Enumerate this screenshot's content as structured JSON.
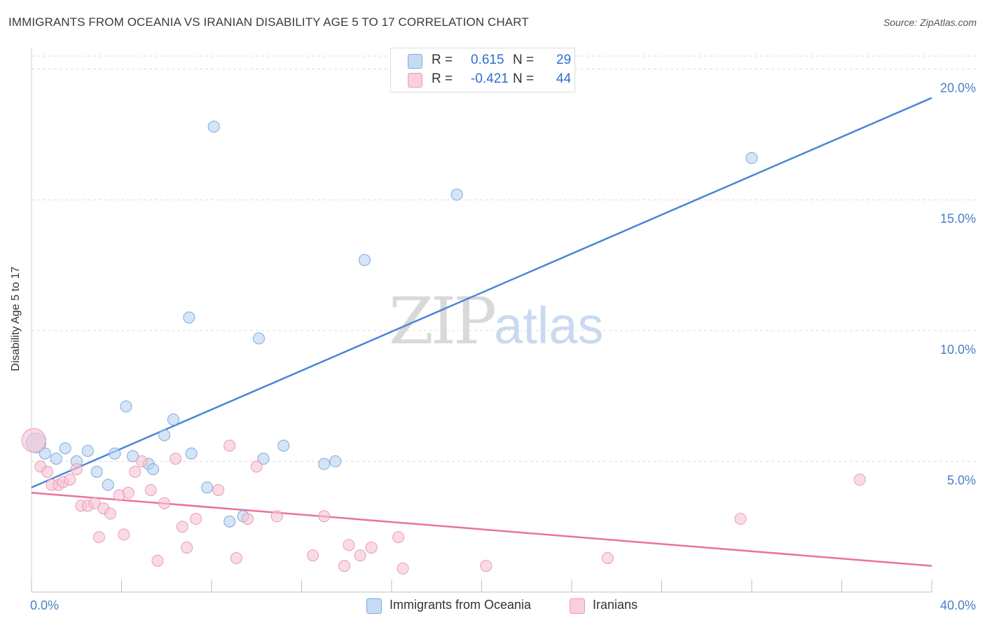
{
  "title": "IMMIGRANTS FROM OCEANIA VS IRANIAN DISABILITY AGE 5 TO 17 CORRELATION CHART",
  "source": "Source: ZipAtlas.com",
  "watermark": {
    "zip": "ZIP",
    "atlas": "atlas"
  },
  "legend": {
    "rows": [
      {
        "r_label": "R =",
        "r_value": "0.615",
        "n_label": "N =",
        "n_value": "29",
        "color": "#a8c8f0"
      },
      {
        "r_label": "R =",
        "r_value": "-0.421",
        "n_label": "N =",
        "n_value": "44",
        "color": "#f5b8cc"
      }
    ]
  },
  "bottom_legend": [
    {
      "label": "Immigrants from Oceania",
      "color": "#a8c8f0"
    },
    {
      "label": "Iranians",
      "color": "#f5b8cc"
    }
  ],
  "colors": {
    "blue": "#4a86d4",
    "blue_fill": "#b9d3f2",
    "pink": "#e8739b",
    "pink_fill": "#f7c3d3",
    "tick_label": "#4a7fc7"
  },
  "chart_data": {
    "type": "scatter",
    "title": "IMMIGRANTS FROM OCEANIA VS IRANIAN DISABILITY AGE 5 TO 17 CORRELATION CHART",
    "xlabel": "",
    "ylabel": "Disability Age 5 to 17",
    "xlim": [
      0,
      40
    ],
    "ylim": [
      0,
      20.5
    ],
    "x_tick_labels": [
      "0.0%",
      "40.0%"
    ],
    "y_ticks": [
      5,
      10,
      15,
      20
    ],
    "y_tick_labels": [
      "5.0%",
      "10.0%",
      "15.0%",
      "20.0%"
    ],
    "grid": true,
    "legend_position": "top-center",
    "series": [
      {
        "name": "Immigrants from Oceania",
        "color": "#4a86d4",
        "trend": {
          "x": [
            0,
            40
          ],
          "y": [
            4.0,
            18.9
          ]
        },
        "points": [
          [
            0.2,
            5.7
          ],
          [
            0.6,
            5.3
          ],
          [
            1.1,
            5.1
          ],
          [
            1.5,
            5.5
          ],
          [
            2.0,
            5.0
          ],
          [
            2.5,
            5.4
          ],
          [
            2.9,
            4.6
          ],
          [
            3.4,
            4.1
          ],
          [
            3.7,
            5.3
          ],
          [
            4.2,
            7.1
          ],
          [
            4.5,
            5.2
          ],
          [
            5.2,
            4.9
          ],
          [
            5.4,
            4.7
          ],
          [
            5.9,
            6.0
          ],
          [
            6.3,
            6.6
          ],
          [
            7.0,
            10.5
          ],
          [
            7.1,
            5.3
          ],
          [
            7.8,
            4.0
          ],
          [
            8.1,
            17.8
          ],
          [
            8.8,
            2.7
          ],
          [
            9.4,
            2.9
          ],
          [
            10.1,
            9.7
          ],
          [
            10.3,
            5.1
          ],
          [
            11.2,
            5.6
          ],
          [
            13.0,
            4.9
          ],
          [
            13.5,
            5.0
          ],
          [
            14.8,
            12.7
          ],
          [
            18.9,
            15.2
          ],
          [
            32.0,
            16.6
          ]
        ]
      },
      {
        "name": "Iranians",
        "color": "#e8739b",
        "trend": {
          "x": [
            0,
            40
          ],
          "y": [
            3.8,
            1.0
          ]
        },
        "points": [
          [
            0.1,
            5.8
          ],
          [
            0.4,
            4.8
          ],
          [
            0.7,
            4.6
          ],
          [
            0.9,
            4.1
          ],
          [
            1.2,
            4.1
          ],
          [
            1.4,
            4.2
          ],
          [
            1.7,
            4.3
          ],
          [
            2.0,
            4.7
          ],
          [
            2.2,
            3.3
          ],
          [
            2.5,
            3.3
          ],
          [
            2.8,
            3.4
          ],
          [
            3.0,
            2.1
          ],
          [
            3.2,
            3.2
          ],
          [
            3.5,
            3.0
          ],
          [
            3.9,
            3.7
          ],
          [
            4.1,
            2.2
          ],
          [
            4.3,
            3.8
          ],
          [
            4.6,
            4.6
          ],
          [
            4.9,
            5.0
          ],
          [
            5.3,
            3.9
          ],
          [
            5.6,
            1.2
          ],
          [
            5.9,
            3.4
          ],
          [
            6.4,
            5.1
          ],
          [
            6.7,
            2.5
          ],
          [
            6.9,
            1.7
          ],
          [
            7.3,
            2.8
          ],
          [
            8.3,
            3.9
          ],
          [
            8.8,
            5.6
          ],
          [
            9.1,
            1.3
          ],
          [
            9.6,
            2.8
          ],
          [
            10.0,
            4.8
          ],
          [
            10.9,
            2.9
          ],
          [
            12.5,
            1.4
          ],
          [
            13.0,
            2.9
          ],
          [
            13.9,
            1.0
          ],
          [
            14.1,
            1.8
          ],
          [
            14.6,
            1.4
          ],
          [
            15.1,
            1.7
          ],
          [
            16.3,
            2.1
          ],
          [
            16.5,
            0.9
          ],
          [
            20.2,
            1.0
          ],
          [
            25.6,
            1.3
          ],
          [
            31.5,
            2.8
          ],
          [
            36.8,
            4.3
          ]
        ]
      }
    ]
  }
}
